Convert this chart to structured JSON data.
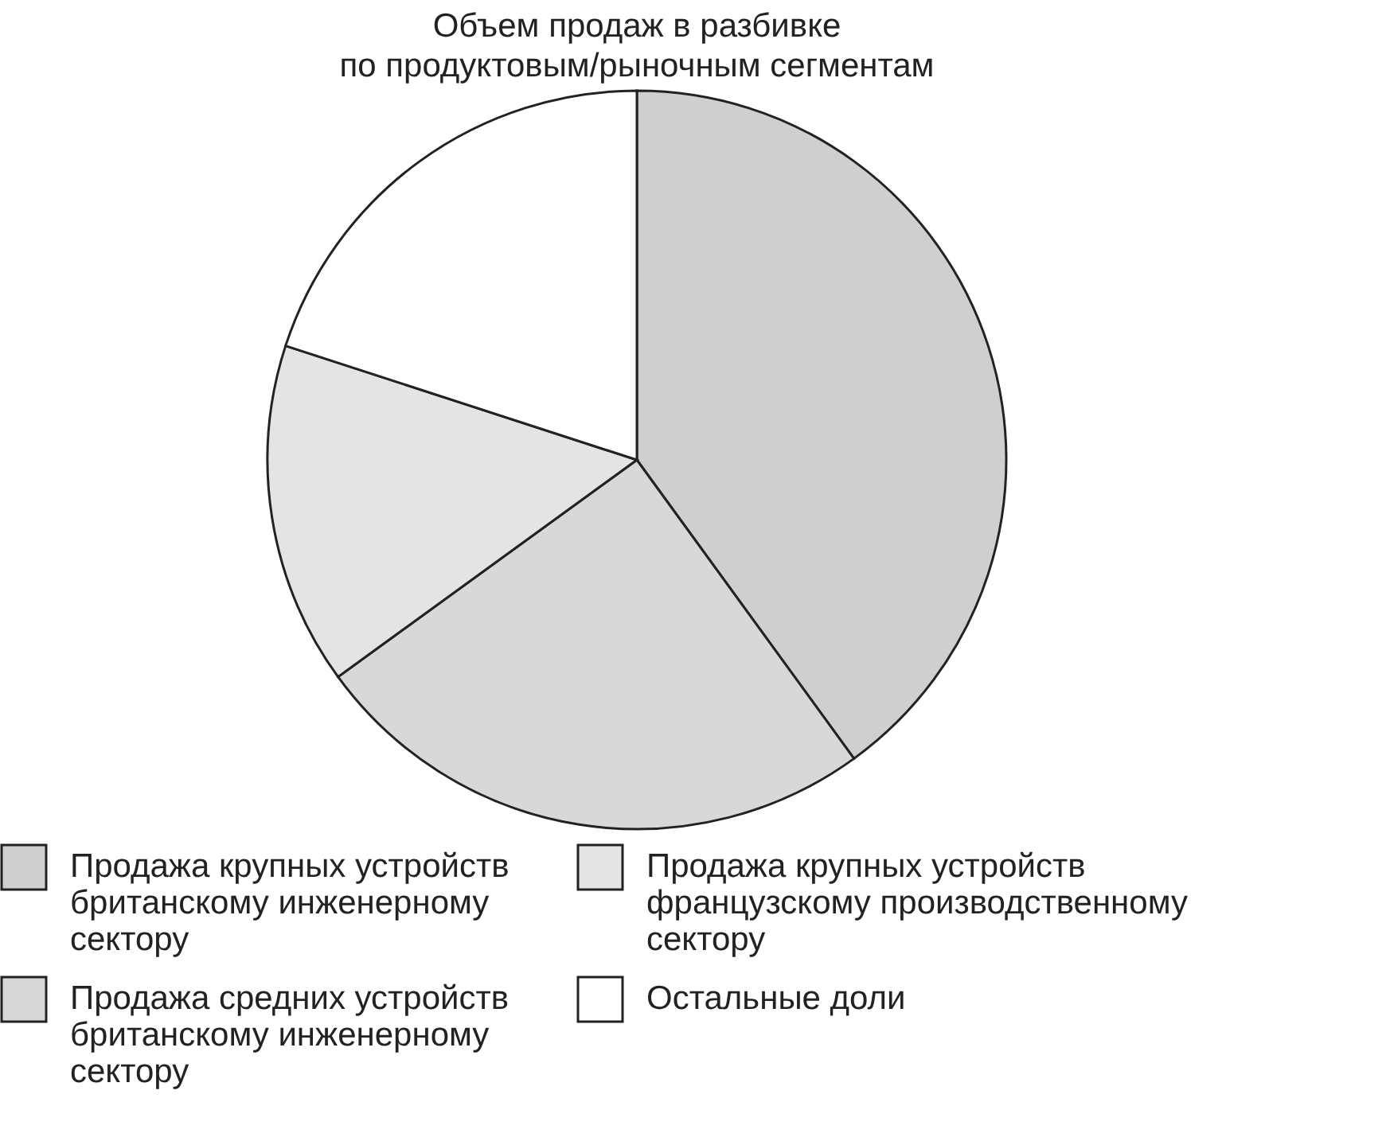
{
  "chart_data": {
    "type": "pie",
    "title": "Объем продаж в разбивке по продуктовым/рыночным сегментам",
    "categories": [
      "Продажа крупных устройств британскому инженерному сектору",
      "Продажа средних устройств британскому инженерному сектору",
      "Продажа крупных устройств французскому производственному сектору",
      "Остальные доли"
    ],
    "values": [
      40,
      25,
      15,
      20
    ],
    "colors": [
      "#cdcfd0",
      "#d6d8d9",
      "#e2e4e5",
      "#ffffff"
    ],
    "legend": "bottom"
  }
}
